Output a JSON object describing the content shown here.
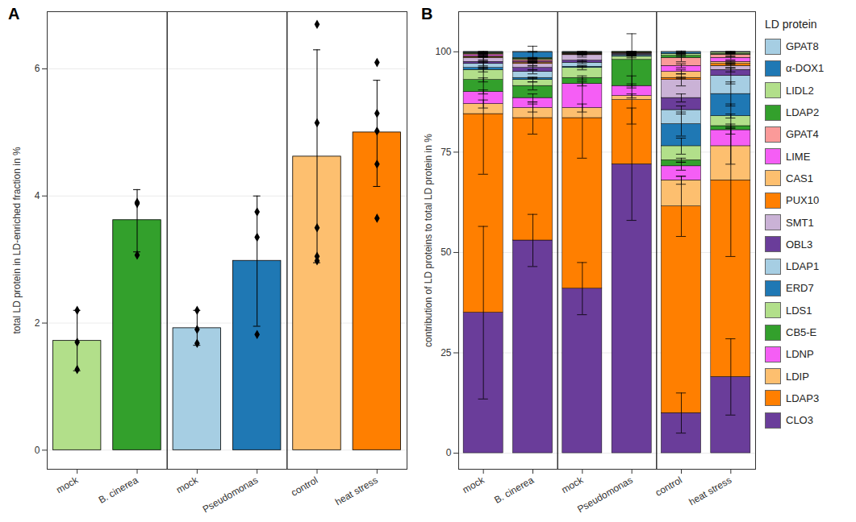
{
  "chart_data": [
    {
      "type": "bar",
      "title": "A",
      "y_label": "total LD protein in LD-enriched fraction in %",
      "categories": [
        "mock",
        "B. cinerea",
        "mock",
        "Pseudomonas",
        "control",
        "heat stress"
      ],
      "values": [
        1.72,
        3.62,
        1.92,
        2.98,
        4.62,
        5.0
      ],
      "error_low": [
        1.25,
        3.12,
        1.65,
        1.95,
        2.95,
        4.15
      ],
      "error_high": [
        2.2,
        4.1,
        2.2,
        4.0,
        6.3,
        5.82
      ],
      "points": [
        [
          2.2,
          1.7,
          1.27
        ],
        [
          3.9,
          3.88,
          3.07
        ],
        [
          2.2,
          1.9,
          1.68
        ],
        [
          3.75,
          3.35,
          1.82
        ],
        [
          6.7,
          5.15,
          3.5,
          3.05,
          2.98
        ],
        [
          6.1,
          5.3,
          5.02,
          4.5,
          3.65
        ]
      ],
      "colors": [
        "#b2df8a",
        "#33a02c",
        "#a6cee3",
        "#1f78b4",
        "#fdbf6f",
        "#ff7f00"
      ],
      "marker": "diamond",
      "ylim": [
        -0.3,
        6.9
      ],
      "yticks": [
        0,
        2,
        4,
        6
      ],
      "grid": true
    },
    {
      "type": "bar",
      "title": "B",
      "stacked": true,
      "legend": "right",
      "y_label": "contribution of LD proteins to total LD protein in %",
      "legend_title": "LD protein",
      "categories": [
        "mock",
        "B. cinerea",
        "mock",
        "Pseudomonas",
        "control",
        "heat stress"
      ],
      "series": [
        {
          "name": "GPAT8",
          "color": "#a6cee3",
          "values": [
            0.1,
            0.1,
            0.1,
            0,
            0.2,
            0.1
          ],
          "errors": [
            0.1,
            0.1,
            0.1,
            0,
            0.2,
            0.1
          ]
        },
        {
          "name": "α-DOX1",
          "color": "#1f78b4",
          "values": [
            0.1,
            1.4,
            0.1,
            0,
            0.3,
            0.1
          ],
          "errors": [
            0.1,
            1.5,
            0.1,
            0,
            0.2,
            0.1
          ]
        },
        {
          "name": "LIDL2",
          "color": "#b2df8a",
          "values": [
            0.1,
            0.2,
            0.1,
            0.05,
            0.5,
            0.3
          ],
          "errors": [
            0.1,
            0.1,
            0.1,
            0.05,
            0.2,
            0.2
          ]
        },
        {
          "name": "LDAP2",
          "color": "#33a02c",
          "values": [
            0.2,
            0.3,
            0.1,
            0.05,
            0.5,
            0.2
          ],
          "errors": [
            0.1,
            0.1,
            0.1,
            0.05,
            0.2,
            0.1
          ]
        },
        {
          "name": "GPAT4",
          "color": "#fb9a99",
          "values": [
            0.3,
            0.3,
            0.1,
            0.05,
            2,
            0.8
          ],
          "errors": [
            0.1,
            0.1,
            0.1,
            0.05,
            1,
            0.5
          ]
        },
        {
          "name": "LIME",
          "color": "#f55ef5",
          "values": [
            0.3,
            0.3,
            0.1,
            0.05,
            1.5,
            1
          ],
          "errors": [
            0.1,
            0.1,
            0.1,
            0.05,
            0.5,
            0.5
          ]
        },
        {
          "name": "CAS1",
          "color": "#fdbf6f",
          "values": [
            0.2,
            0.2,
            0.1,
            0.05,
            1.5,
            0.5
          ],
          "errors": [
            0.1,
            0.1,
            0.1,
            0.05,
            0.5,
            0.2
          ]
        },
        {
          "name": "PUX10",
          "color": "#ff7f00",
          "values": [
            0.2,
            0.2,
            0.1,
            0.05,
            0.5,
            0.5
          ],
          "errors": [
            0.1,
            0.1,
            0.1,
            0.05,
            0.2,
            0.2
          ]
        },
        {
          "name": "SMT1",
          "color": "#cab2d6",
          "values": [
            1,
            1,
            1.4,
            0.2,
            4.5,
            1
          ],
          "errors": [
            0.5,
            0.5,
            0.5,
            0.1,
            1.5,
            0.5
          ]
        },
        {
          "name": "OBL3",
          "color": "#6a3d9a",
          "values": [
            0.5,
            1,
            0.5,
            0.2,
            3,
            1.5
          ],
          "errors": [
            0.2,
            0.5,
            0.2,
            0.1,
            1,
            0.5
          ]
        },
        {
          "name": "LDAP1",
          "color": "#a6cee3",
          "values": [
            1,
            1.5,
            1,
            0.3,
            3.5,
            4.5
          ],
          "errors": [
            0.5,
            0.5,
            0.3,
            0.1,
            1,
            2
          ]
        },
        {
          "name": "ERD7",
          "color": "#1f78b4",
          "values": [
            0.5,
            0.5,
            0.3,
            0.2,
            5.5,
            5.5
          ],
          "errors": [
            0.2,
            0.2,
            0.2,
            0.1,
            3,
            3
          ]
        },
        {
          "name": "LDS1",
          "color": "#b2df8a",
          "values": [
            2.5,
            1.5,
            2.5,
            0.8,
            3.5,
            2.5
          ],
          "errors": [
            0.5,
            0.5,
            0.5,
            0.3,
            2,
            0.5
          ]
        },
        {
          "name": "CB5-E",
          "color": "#33a02c",
          "values": [
            3,
            3,
            1.5,
            6.5,
            1.5,
            1
          ],
          "errors": [
            0.5,
            1,
            0.5,
            6.5,
            0.5,
            0.5
          ]
        },
        {
          "name": "LDNP",
          "color": "#f55ef5",
          "values": [
            3,
            2.5,
            6,
            2.5,
            3.5,
            4
          ],
          "errors": [
            0.5,
            1,
            0.5,
            0.5,
            1,
            1
          ]
        },
        {
          "name": "LDIP",
          "color": "#fdbf6f",
          "values": [
            2.5,
            2.5,
            2.5,
            1,
            6.5,
            8.5
          ],
          "errors": [
            1,
            1,
            1,
            0.5,
            1,
            4.5
          ]
        },
        {
          "name": "LDAP3",
          "color": "#ff7f00",
          "values": [
            49.5,
            30.5,
            42.5,
            16,
            51.5,
            49
          ],
          "errors": [
            15,
            4,
            10,
            6,
            7.5,
            19
          ]
        },
        {
          "name": "CLO3",
          "color": "#6a3d9a",
          "values": [
            35,
            53,
            41,
            72,
            10,
            19
          ],
          "errors": [
            21.5,
            6.5,
            6.5,
            14,
            5,
            9.5
          ]
        }
      ],
      "ylim": [
        -4,
        110
      ],
      "yticks": [
        0,
        25,
        50,
        75,
        100
      ],
      "grid": true
    }
  ]
}
